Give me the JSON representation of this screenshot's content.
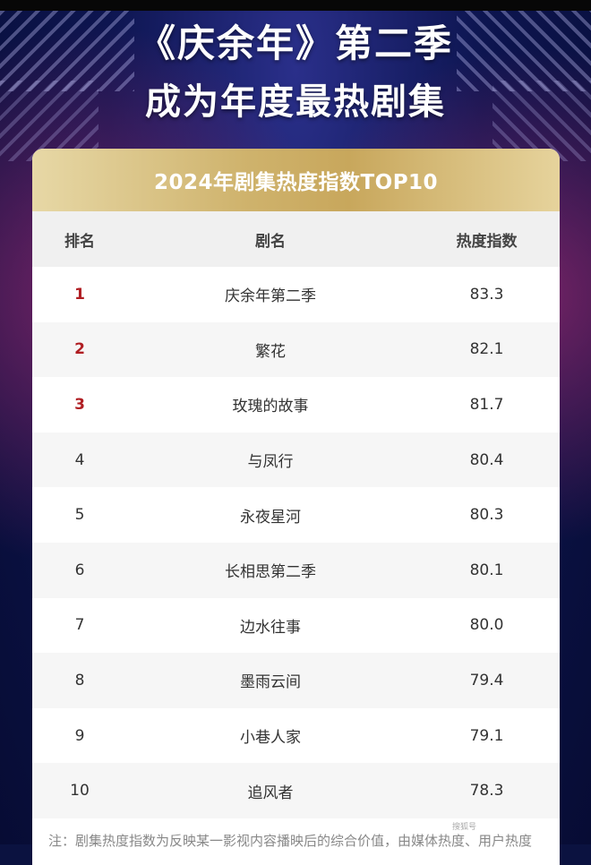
{
  "headline": {
    "line1": "《庆余年》第二季",
    "line2": "成为年度最热剧集"
  },
  "card": {
    "title": "2024年剧集热度指数TOP10",
    "columns": {
      "rank": "排名",
      "name": "剧名",
      "score": "热度指数"
    },
    "rows": [
      {
        "rank": "1",
        "name": "庆余年第二季",
        "score": "83.3"
      },
      {
        "rank": "2",
        "name": "繁花",
        "score": "82.1"
      },
      {
        "rank": "3",
        "name": "玫瑰的故事",
        "score": "81.7"
      },
      {
        "rank": "4",
        "name": "与凤行",
        "score": "80.4"
      },
      {
        "rank": "5",
        "name": "永夜星河",
        "score": "80.3"
      },
      {
        "rank": "6",
        "name": "长相思第二季",
        "score": "80.1"
      },
      {
        "rank": "7",
        "name": "边水往事",
        "score": "80.0"
      },
      {
        "rank": "8",
        "name": "墨雨云间",
        "score": "79.4"
      },
      {
        "rank": "9",
        "name": "小巷人家",
        "score": "79.1"
      },
      {
        "rank": "10",
        "name": "追风者",
        "score": "78.3"
      }
    ]
  },
  "footnote": "注：剧集热度指数为反映某一影视内容播映后的综合价值，由媒体热度、用户热度",
  "watermark": "搜狐号"
}
